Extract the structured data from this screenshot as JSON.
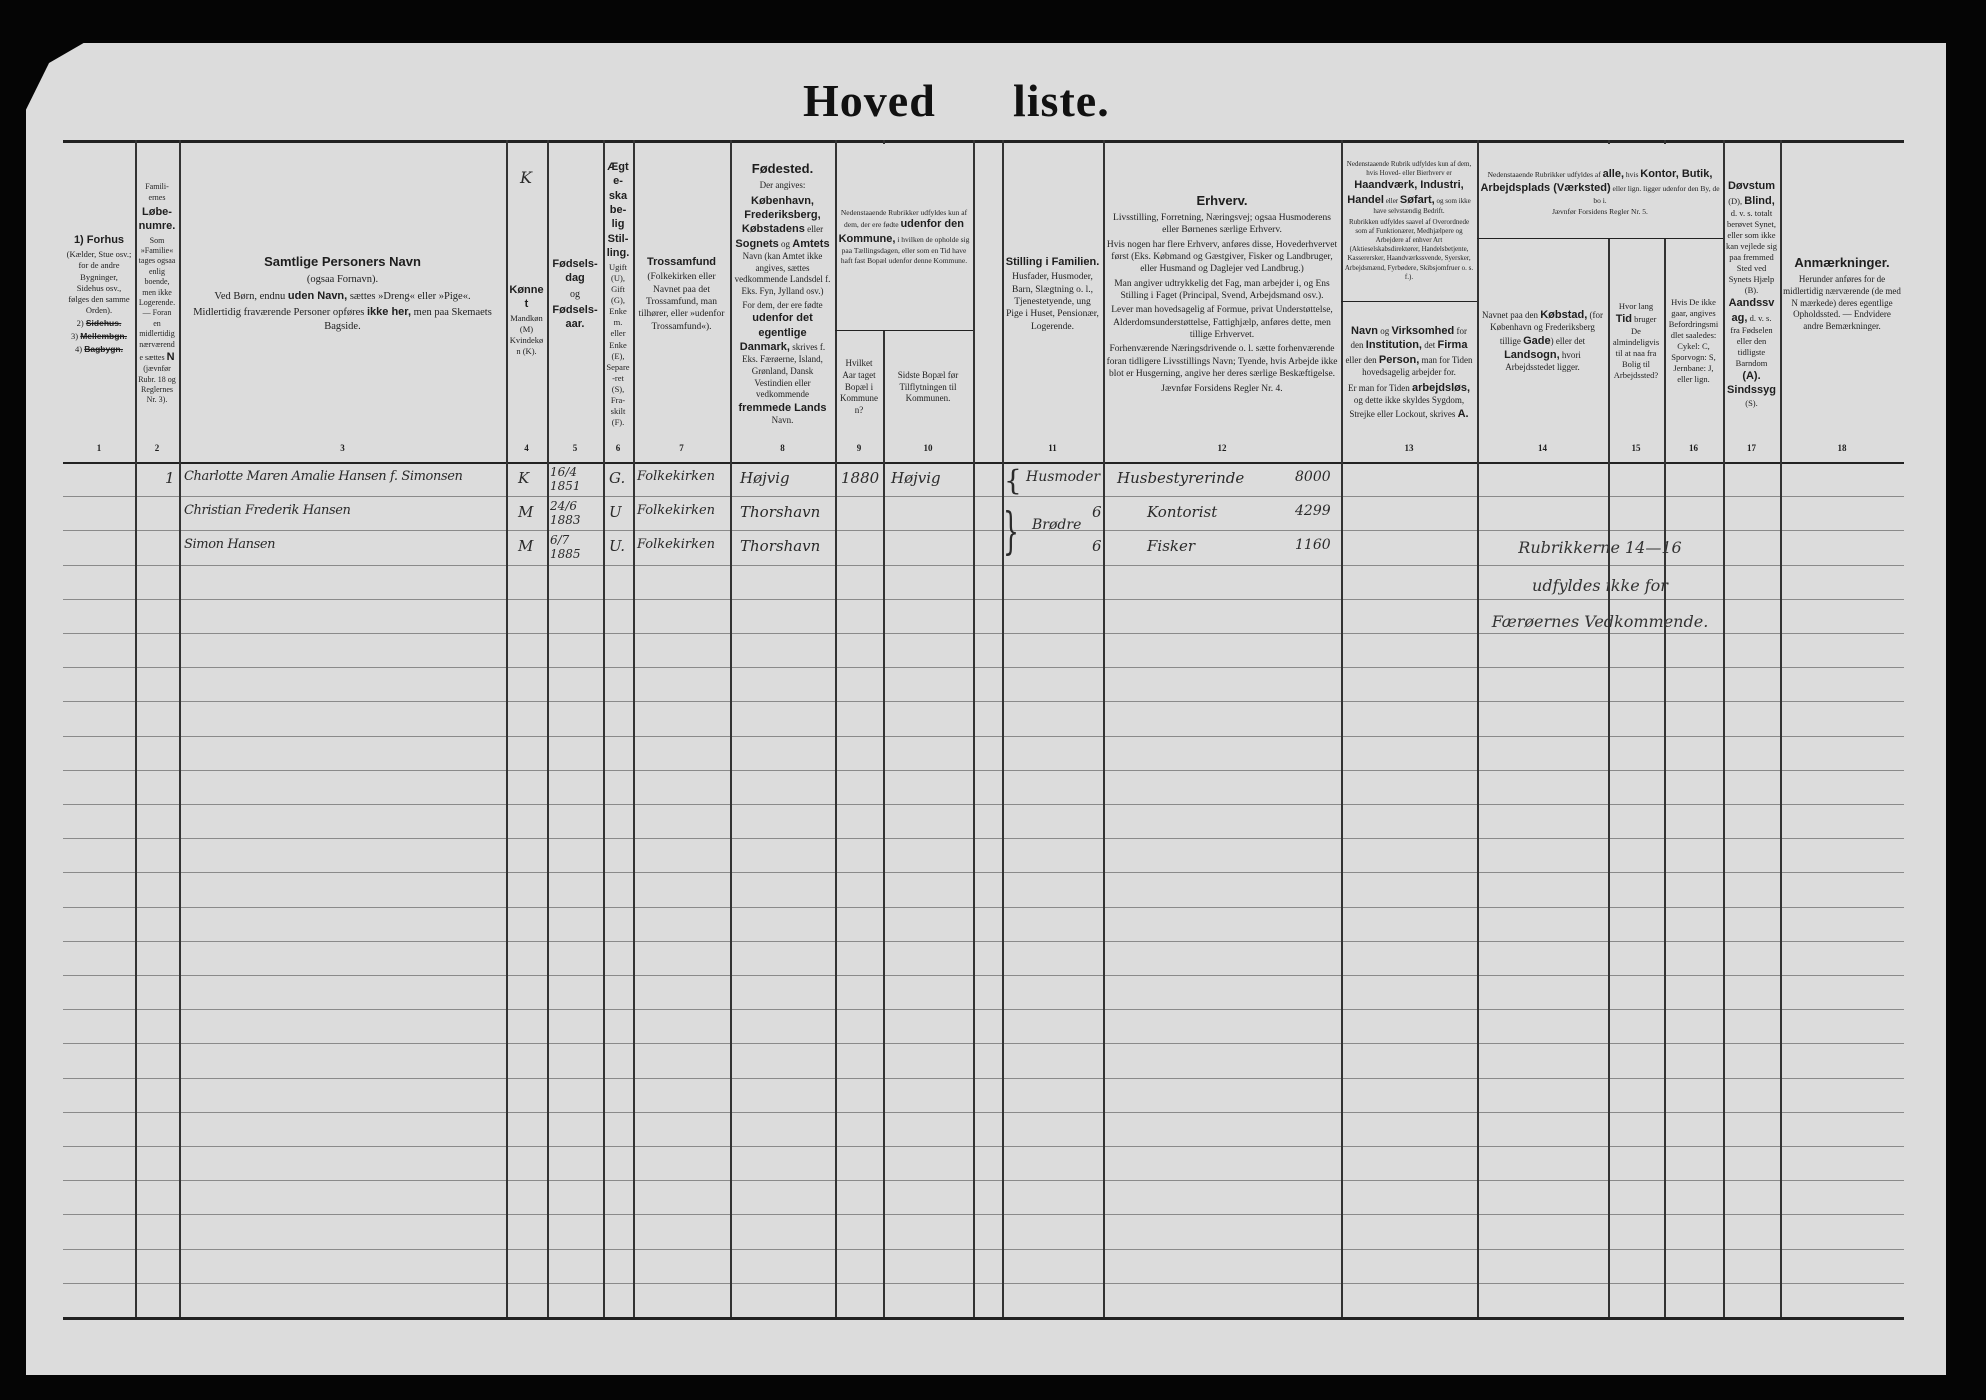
{
  "document": {
    "title_left": "Hoved",
    "title_right": "liste.",
    "paper_color": "#dcdcdc",
    "ink_color": "#1e1e1e"
  },
  "columns": {
    "c1": {
      "number": "1",
      "parts": [
        {
          "t": "1) Forhus",
          "b": true
        },
        {
          "br": true
        },
        {
          "t": "(Kælder, Stue osv.; for de andre Bygninger, Sidehus osv., følges den samme Orden)."
        },
        {
          "br": true
        },
        {
          "t": "2) "
        },
        {
          "t": "Sidehus.",
          "s": true
        },
        {
          "br": true
        },
        {
          "t": "3) "
        },
        {
          "t": "Mellembgn.",
          "s": true
        },
        {
          "br": true
        },
        {
          "t": "4) "
        },
        {
          "t": "Bagbygn.",
          "s": true
        }
      ]
    },
    "c2": {
      "number": "2",
      "parts": [
        {
          "t": "Famili-ernes"
        },
        {
          "br": true
        },
        {
          "t": "Løbe-numre.",
          "b": true
        },
        {
          "br": true
        },
        {
          "t": "Som »Familie« tages ogsaa enlig boende, men ikke Logerende. — Foran en midlertidig nærværende sættes "
        },
        {
          "t": "N",
          "b": true
        },
        {
          "t": " (jævnfør Rubr. 18 og Reglernes Nr. 3)."
        }
      ]
    },
    "c3": {
      "number": "3",
      "parts": [
        {
          "t": "Samtlige Personers Navn",
          "b": true,
          "big": true
        },
        {
          "br": true
        },
        {
          "t": "(ogsaa Fornavn)."
        },
        {
          "br": true
        },
        {
          "t": "Ved Børn, endnu "
        },
        {
          "t": "uden Navn,",
          "b": true
        },
        {
          "t": " sættes »Dreng« eller »Pige«."
        },
        {
          "br": true
        },
        {
          "t": "Midlertidig fraværende Personer opføres "
        },
        {
          "t": "ikke her,",
          "b": true
        },
        {
          "t": " men paa Skemaets Bagside."
        }
      ]
    },
    "c4": {
      "number": "4",
      "mark": "K",
      "parts": [
        {
          "t": "Kønnet",
          "b": true
        },
        {
          "br": true
        },
        {
          "t": "Mandkøn (M) Kvindekøn (K)."
        }
      ]
    },
    "c5": {
      "number": "5",
      "parts": [
        {
          "t": "Fødsels-dag",
          "b": true
        },
        {
          "br": true
        },
        {
          "t": "og"
        },
        {
          "br": true
        },
        {
          "t": "Fødsels-aar.",
          "b": true
        }
      ]
    },
    "c6": {
      "number": "6",
      "parts": [
        {
          "t": "Ægte-skabe-lig Stil-ling.",
          "b": true
        },
        {
          "br": true
        },
        {
          "t": "Ugift (U), Gift (G), Enkem. eller Enke (E), Separe-ret (S), Fra-skilt (F)."
        }
      ]
    },
    "c7": {
      "number": "7",
      "parts": [
        {
          "t": "Trossamfund",
          "b": true
        },
        {
          "br": true
        },
        {
          "t": "(Folkekirken eller Navnet paa det Trossamfund, man tilhører, eller »udenfor Trossamfund«)."
        }
      ]
    },
    "c8": {
      "number": "8",
      "parts": [
        {
          "t": "Fødested.",
          "b": true,
          "big": true
        },
        {
          "br": true
        },
        {
          "t": "Der angives:"
        },
        {
          "br": true
        },
        {
          "t": "København, Frederiksberg, Købstadens",
          "b": true
        },
        {
          "t": " eller "
        },
        {
          "t": "Sognets",
          "b": true
        },
        {
          "t": " og "
        },
        {
          "t": "Amtets",
          "b": true
        },
        {
          "t": " Navn (kan Amtet ikke angives, sættes vedkommende Landsdel f. Eks. Fyn, Jylland osv.)"
        },
        {
          "br": true
        },
        {
          "t": "For dem, der ere fødte "
        },
        {
          "t": "udenfor det egentlige Danmark,",
          "b": true
        },
        {
          "t": " skrives f. Eks. Færøerne, Island, Grønland, Dansk Vestindien eller vedkommende "
        },
        {
          "t": "fremmede Lands",
          "b": true
        },
        {
          "t": " Navn."
        }
      ]
    },
    "g910": {
      "parts": [
        {
          "t": "Nedenstaaende Rubrikker udfyldes kun af dem, der ere fødte "
        },
        {
          "t": "udenfor den Kommune,",
          "b": true
        },
        {
          "t": " i hvilken de opholde sig paa Tællingsdagen, eller som en Tid have haft fast Bopæl udenfor denne Kommune."
        }
      ]
    },
    "c9": {
      "number": "9",
      "parts": [
        {
          "t": "Hvilket Aar taget Bopæl i Kommunen?"
        }
      ]
    },
    "c10": {
      "number": "10",
      "parts": [
        {
          "t": "Sidste Bopæl før Tilflytningen til Kommunen."
        }
      ]
    },
    "c11": {
      "number": "11",
      "parts": [
        {
          "t": "Stilling i Familien.",
          "b": true
        },
        {
          "br": true
        },
        {
          "t": "Husfader, Husmoder, Barn, Slægtning o. l., Tjenestetyende, ung Pige i Huset, Pensionær, Logerende."
        }
      ]
    },
    "c12": {
      "number": "12",
      "parts": [
        {
          "t": "Erhverv.",
          "b": true,
          "big": true
        },
        {
          "br": true
        },
        {
          "t": "Livsstilling, Forretning, Næringsvej; ogsaa Husmoderens eller Børnenes særlige Erhverv."
        },
        {
          "br": true
        },
        {
          "t": "Hvis nogen har flere Erhverv, anføres disse, Hovederhvervet først (Eks. Købmand og Gæstgiver, Fisker og Landbruger, eller Husmand og Daglejer ved Landbrug.)"
        },
        {
          "br": true
        },
        {
          "t": "Man angiver udtrykkelig det Fag, man arbejder i, og Ens Stilling i Faget (Principal, Svend, Arbejdsmand osv.)."
        },
        {
          "br": true
        },
        {
          "t": "Lever man hovedsagelig af Formue, privat Understøttelse, Alderdomsunderstøttelse, Fattighjælp, anføres dette, men tillige Erhvervet."
        },
        {
          "br": true
        },
        {
          "t": "Forhenværende Næringsdrivende o. l. sætte forhenværende foran tidligere Livsstillings Navn; Tyende, hvis Arbejde ikke blot er Husgerning, angive her deres særlige Beskæftigelse."
        },
        {
          "br": true
        },
        {
          "t": "Jævnfør Forsidens Regler Nr. 4."
        }
      ]
    },
    "c13top": {
      "parts": [
        {
          "t": "Nedenstaaende Rubrik udfyldes kun af dem, hvis Hoved- eller Bierhverv er "
        },
        {
          "t": "Haandværk, Industri, Handel",
          "b": true
        },
        {
          "t": " eller "
        },
        {
          "t": "Søfart,",
          "b": true
        },
        {
          "t": " og som ikke have selvstændig Bedrift."
        },
        {
          "br": true
        },
        {
          "t": "Rubrikken udfyldes saavel af Overordnede som af Funktionærer, Medhjælpere og Arbejdere af enhver Art (Aktieselskabsdirektører, Handelsbetjente, Kasserersker, Haandværkssvende, Syersker, Arbejdsmænd, Fyrbødere, Skibsjomfruer o. s. f.)."
        }
      ]
    },
    "c13": {
      "number": "13",
      "parts": [
        {
          "t": "Navn",
          "b": true
        },
        {
          "t": " og "
        },
        {
          "t": "Virksomhed",
          "b": true
        },
        {
          "t": " for den "
        },
        {
          "t": "Institution,",
          "b": true
        },
        {
          "t": " det "
        },
        {
          "t": "Firma",
          "b": true
        },
        {
          "t": " eller den "
        },
        {
          "t": "Person,",
          "b": true
        },
        {
          "t": " man for Tiden hovedsagelig arbejder for."
        },
        {
          "br": true
        },
        {
          "t": "Er man for Tiden "
        },
        {
          "t": "arbejdsløs,",
          "b": true
        },
        {
          "t": " og dette ikke skyldes Sygdom, Strejke eller Lockout, skrives "
        },
        {
          "t": "A.",
          "b": true
        }
      ]
    },
    "g1416": {
      "parts": [
        {
          "t": "Nedenstaaende Rubrikker udfyldes af "
        },
        {
          "t": "alle,",
          "b": true
        },
        {
          "t": " hvis "
        },
        {
          "t": "Kontor, Butik, Arbejdsplads (Værksted)",
          "b": true
        },
        {
          "t": " eller lign. ligger udenfor den By, de bo i."
        },
        {
          "br": true
        },
        {
          "t": "Jævnfør Forsidens Regler Nr. 5."
        }
      ]
    },
    "c14": {
      "number": "14",
      "parts": [
        {
          "t": "Navnet paa den "
        },
        {
          "t": "Købstad,",
          "b": true
        },
        {
          "t": " (for København og Frederiksberg tillige "
        },
        {
          "t": "Gade",
          "b": true
        },
        {
          "t": ") eller det "
        },
        {
          "t": "Landsogn,",
          "b": true
        },
        {
          "t": " hvori Arbejdsstedet ligger."
        }
      ]
    },
    "c15": {
      "number": "15",
      "parts": [
        {
          "t": "Hvor lang "
        },
        {
          "t": "Tid",
          "b": true
        },
        {
          "t": " bruger De almindeligvis til at naa fra Bolig til Arbejdssted?"
        }
      ]
    },
    "c16": {
      "number": "16",
      "parts": [
        {
          "t": "Hvis De ikke gaar, angives Befordringsmidlet saaledes: Cykel: C, Sporvogn: S, Jernbane: J, eller lign."
        }
      ]
    },
    "c17": {
      "number": "17",
      "parts": [
        {
          "t": "Døvstum",
          "b": true
        },
        {
          "t": " (D), "
        },
        {
          "t": "Blind,",
          "b": true
        },
        {
          "t": " d. v. s. totalt berøvet Synet, eller som ikke kan vejlede sig paa fremmed Sted ved Synets Hjælp (B). "
        },
        {
          "t": "Aandssvag,",
          "b": true
        },
        {
          "t": " d. v. s. fra Fødselen eller den tidligste Barndom "
        },
        {
          "t": "(A). Sindssyg",
          "b": true
        },
        {
          "t": " (S)."
        }
      ]
    },
    "c18": {
      "number": "18",
      "parts": [
        {
          "t": "Anmærkninger.",
          "b": true,
          "big": true
        },
        {
          "br": true
        },
        {
          "t": "Herunder anføres for de midlertidig nærværende (de med N mærkede) deres egentlige Opholdssted. — Endvidere andre Bemærkninger."
        }
      ]
    }
  },
  "rows": [
    {
      "family_no": "1",
      "name": "Charlotte Maren Amalie Hansen f. Simonsen",
      "sex": "K",
      "birth": "16/4 1851",
      "marital": "G.",
      "faith": "Folkekirken",
      "birthplace": "Højvig",
      "year_moved": "1880",
      "prev_residence": "Højvig",
      "family_position": "Husmoder",
      "family_note": "",
      "occupation": "Husbestyrerinde",
      "amount": "8000"
    },
    {
      "family_no": "",
      "name": "Christian Frederik Hansen",
      "sex": "M",
      "birth": "24/6 1883",
      "marital": "U",
      "faith": "Folkekirken",
      "birthplace": "Thorshavn",
      "year_moved": "",
      "prev_residence": "",
      "family_position": "",
      "family_note": "6",
      "occupation": "Kontorist",
      "amount": "4299"
    },
    {
      "family_no": "",
      "name": "Simon Hansen",
      "sex": "M",
      "birth": "6/7 1885",
      "marital": "U.",
      "faith": "Folkekirken",
      "birthplace": "Thorshavn",
      "year_moved": "",
      "prev_residence": "",
      "family_position": "",
      "family_note": "6",
      "occupation": "Fisker",
      "amount": "1160"
    }
  ],
  "family_group": {
    "label": "Brødre"
  },
  "stamp": {
    "lines": [
      "Rubrikkerne 14—16",
      "udfyldes ikke for",
      "Færøernes Vedkommende."
    ]
  }
}
